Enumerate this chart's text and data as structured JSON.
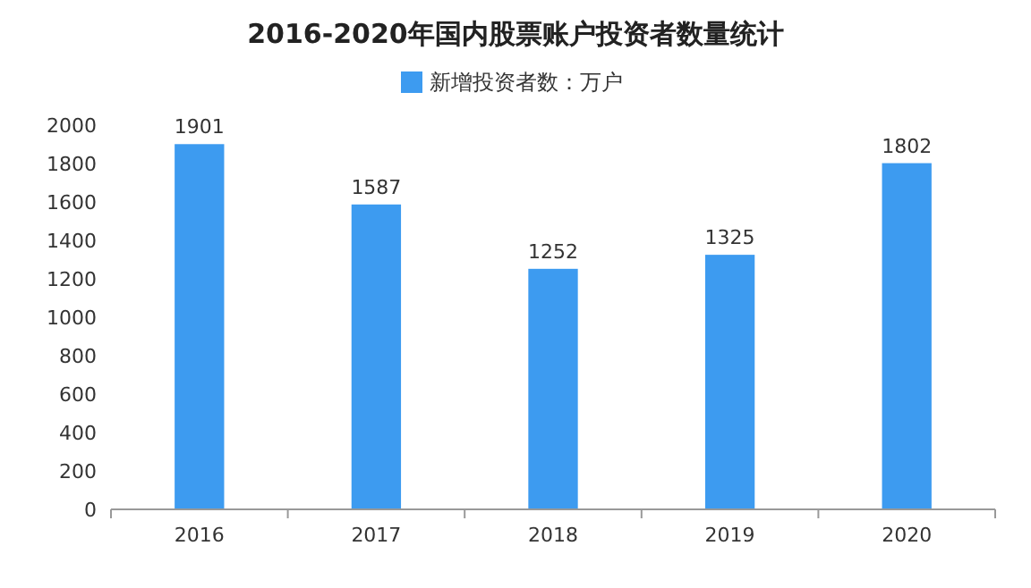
{
  "chart_data": {
    "type": "bar",
    "title": "2016-2020年国内股票账户投资者数量统计",
    "categories": [
      "2016",
      "2017",
      "2018",
      "2019",
      "2020"
    ],
    "series": [
      {
        "name": "新增投资者数：万户",
        "color": "#3d9bf0",
        "values": [
          1901,
          1587,
          1252,
          1325,
          1802
        ]
      }
    ],
    "ylim": [
      0,
      2000
    ],
    "yticks": [
      0,
      200,
      400,
      600,
      800,
      1000,
      1200,
      1400,
      1600,
      1800,
      2000
    ],
    "data_labels": true,
    "legend": "top",
    "grid": false
  }
}
